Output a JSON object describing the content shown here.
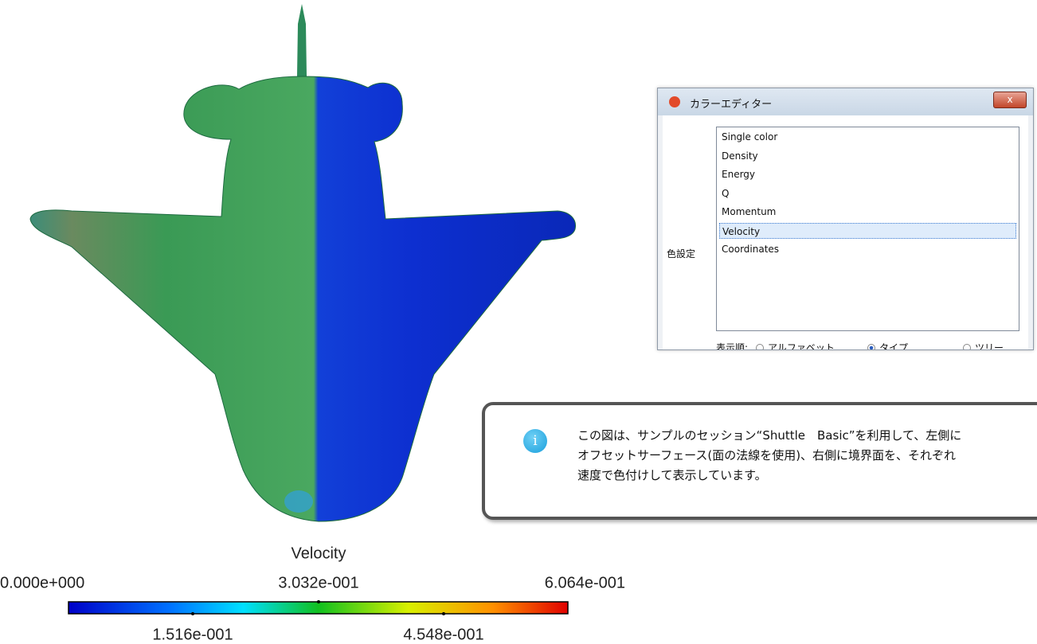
{
  "colorbar": {
    "title": "Velocity",
    "top_labels": [
      "0.000e+000",
      "3.032e-001",
      "6.064e-001"
    ],
    "bottom_labels": [
      "1.516e-001",
      "4.548e-001"
    ]
  },
  "dialog": {
    "title": "カラーエディター",
    "close": "x",
    "label": "色設定",
    "items": [
      "Single color",
      "Density",
      "Energy",
      "Q",
      "Momentum",
      "Velocity",
      "Coordinates"
    ],
    "selected": "Velocity",
    "order_label": "表示順:",
    "order_options": [
      "アルファベット",
      "タイプ",
      "ツリー"
    ],
    "order_selected": "タイプ"
  },
  "info": {
    "icon": "i",
    "lines": [
      "この図は、サンプルのセッション“Shuttle　Basic”を利用して、左側に",
      "オフセットサーフェース(面の法線を使用)、右側に境界面を、それぞれ",
      "速度で色付けして表示しています。"
    ]
  }
}
